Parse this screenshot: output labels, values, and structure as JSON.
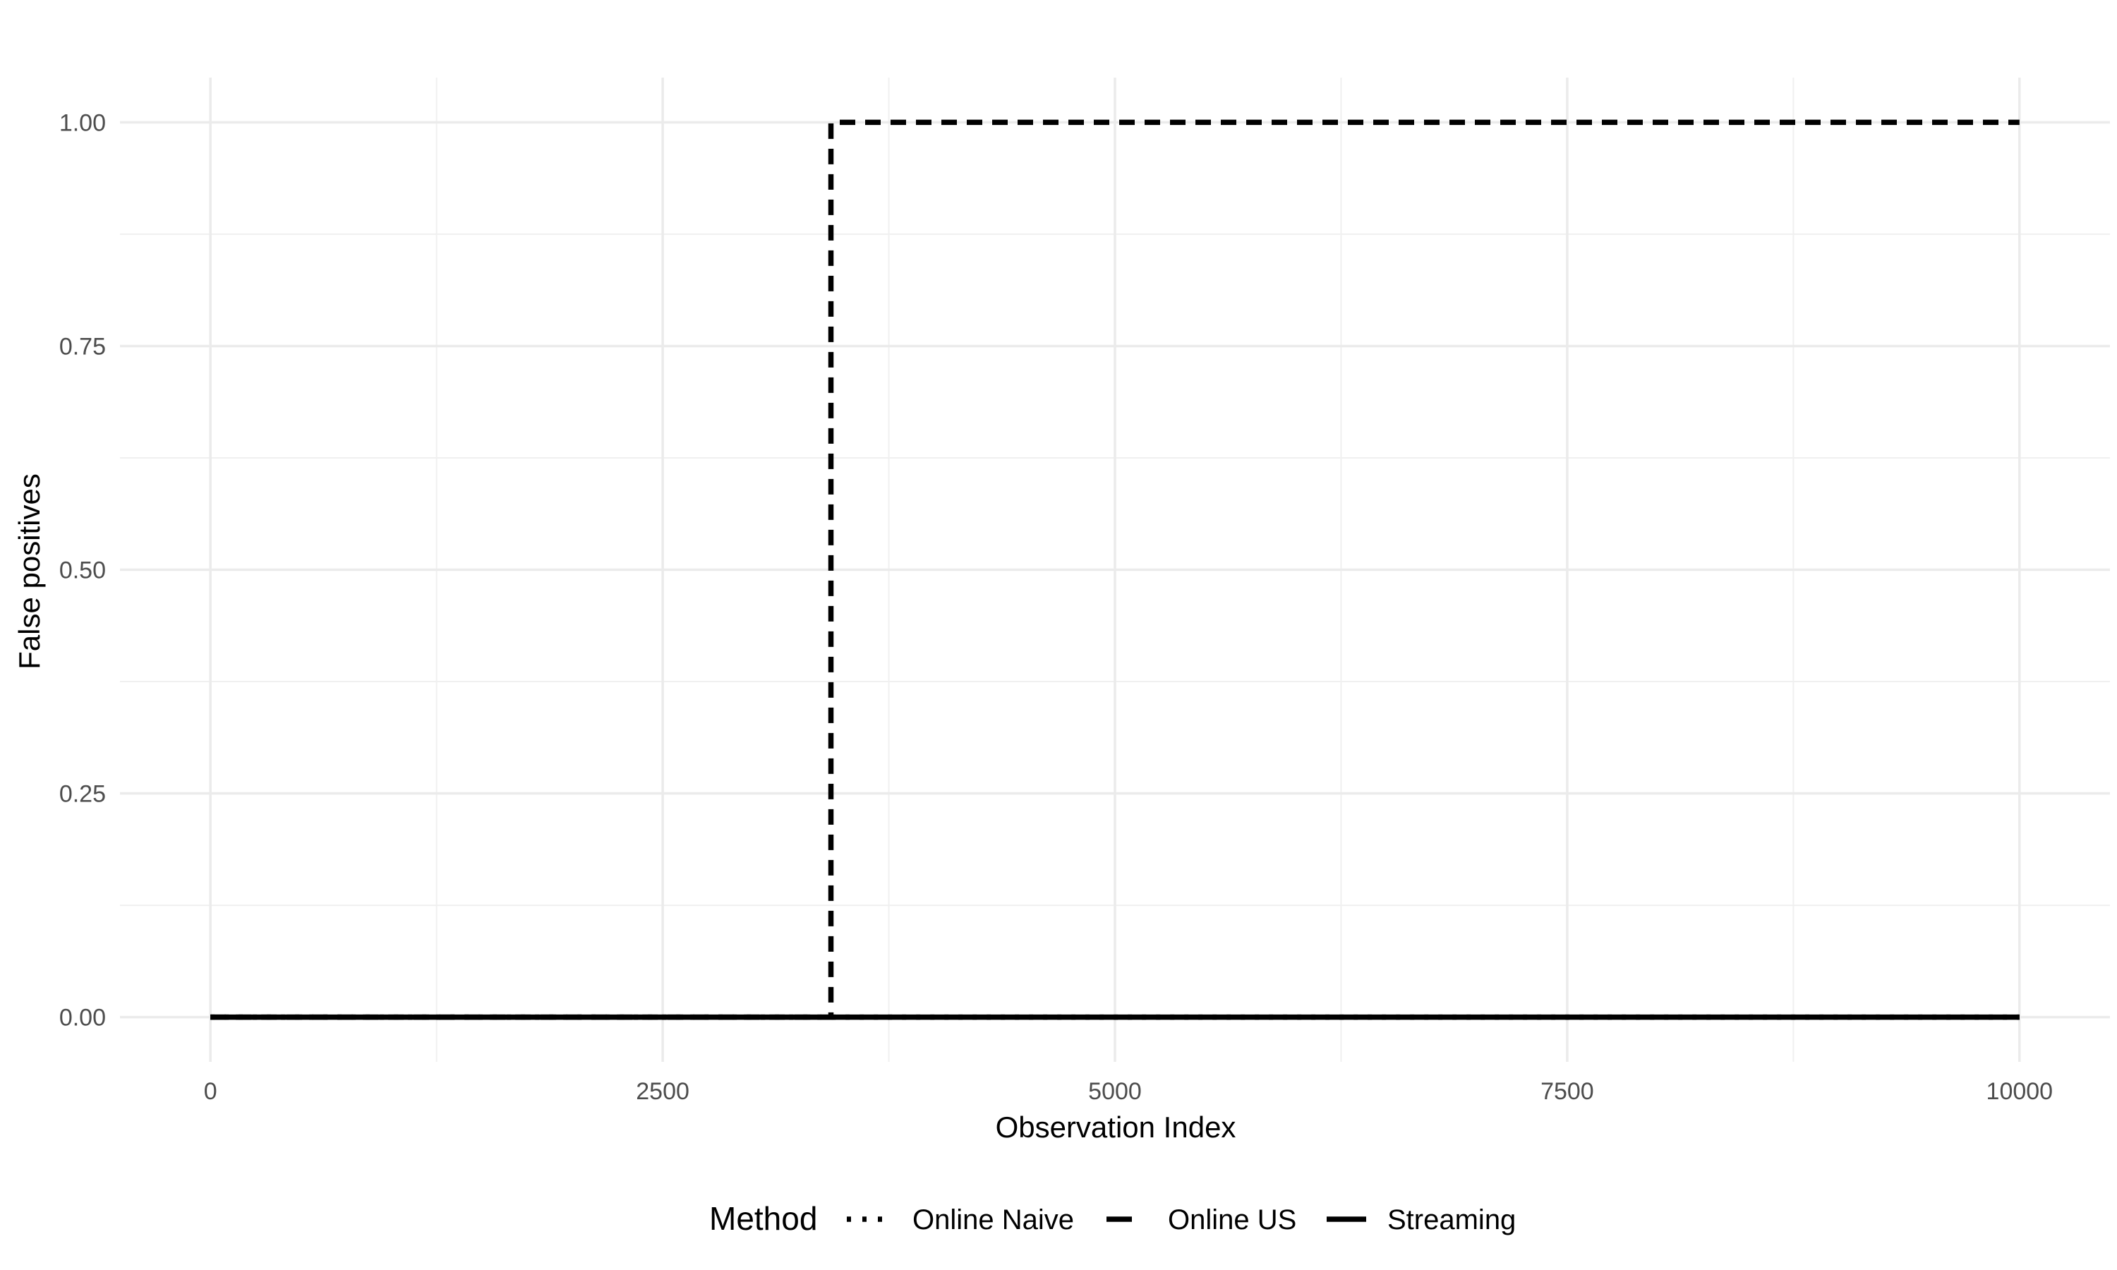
{
  "chart_data": {
    "type": "line",
    "title": "",
    "xlabel": "Observation Index",
    "ylabel": "False positives",
    "xlim": [
      -500,
      10500
    ],
    "ylim": [
      -0.05,
      1.05
    ],
    "x_ticks": [
      0,
      2500,
      5000,
      7500,
      10000
    ],
    "x_tick_labels": [
      "0",
      "2500",
      "5000",
      "7500",
      "10000"
    ],
    "y_ticks": [
      0,
      0.25,
      0.5,
      0.75,
      1.0
    ],
    "y_tick_labels": [
      "0.00",
      "0.25",
      "0.50",
      "0.75",
      "1.00"
    ],
    "grid": true,
    "legend_position": "bottom",
    "legend_title": "Method",
    "series": [
      {
        "name": "Online Naive",
        "linetype": "dotted",
        "color": "#000000",
        "points": [
          [
            0,
            0
          ],
          [
            10000,
            0
          ]
        ]
      },
      {
        "name": "Online US",
        "linetype": "dashed",
        "color": "#000000",
        "points": [
          [
            0,
            0
          ],
          [
            3430,
            0
          ],
          [
            3430,
            1
          ],
          [
            10000,
            1
          ]
        ]
      },
      {
        "name": "Streaming",
        "linetype": "solid",
        "color": "#000000",
        "points": [
          [
            0,
            0
          ],
          [
            10000,
            0
          ]
        ]
      }
    ]
  }
}
